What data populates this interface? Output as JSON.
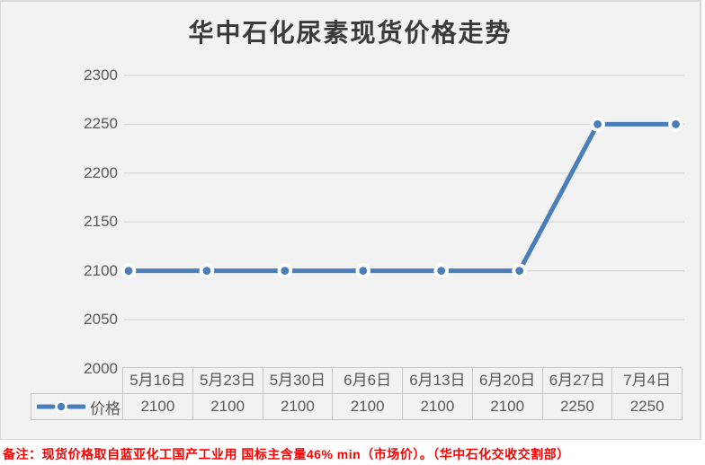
{
  "title": "华中石化尿素现货价格走势",
  "note": "备注：现货价格取自蓝亚化工国产工业用 国标主含量46% min（市场价）。（华中石化交收交割部）",
  "chart_data": {
    "type": "line",
    "title": "华中石化尿素现货价格走势",
    "categories": [
      "5月16日",
      "5月23日",
      "5月30日",
      "6月6日",
      "6月13日",
      "6月20日",
      "6月27日",
      "7月4日"
    ],
    "series": [
      {
        "name": "价格",
        "values": [
          2100,
          2100,
          2100,
          2100,
          2100,
          2100,
          2250,
          2250
        ]
      }
    ],
    "xlabel": "",
    "ylabel": "",
    "ylim": [
      2000,
      2300
    ],
    "ytick_interval": 50,
    "ytick_labels": [
      "2300",
      "2250",
      "2200",
      "2150",
      "2100",
      "2050",
      "2000"
    ],
    "grid": true,
    "legend_position": "data-table-left",
    "marker_style": "circle-with-white-ring"
  },
  "data_table": {
    "headers": [
      "5月16日",
      "5月23日",
      "5月30日",
      "6月6日",
      "6月13日",
      "6月20日",
      "6月27日",
      "7月4日"
    ],
    "rows": [
      {
        "label": "价格",
        "values": [
          "2100",
          "2100",
          "2100",
          "2100",
          "2100",
          "2100",
          "2250",
          "2250"
        ]
      }
    ]
  },
  "colors": {
    "chart_background": "#f2f2f2",
    "chart_border": "#d9d9d9",
    "gridline": "#d8d8d8",
    "table_border": "#c6c6c6",
    "axis_text": "#595959",
    "title_text": "#3a3a3a",
    "series_line": "#4a7ebb",
    "marker_ring": "#ffffff",
    "note_text": "#ff0000"
  }
}
